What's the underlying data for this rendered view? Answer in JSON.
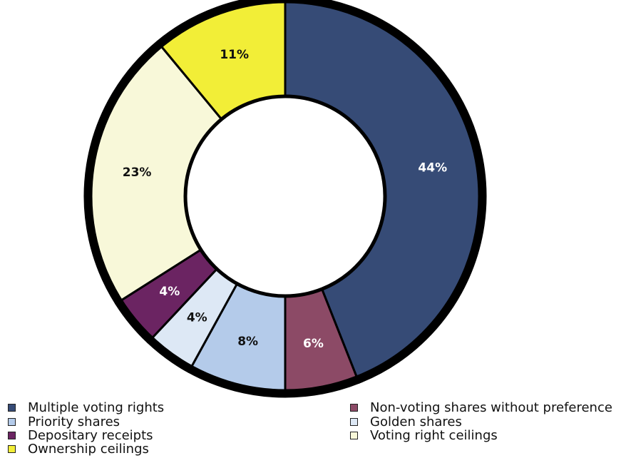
{
  "chart_data": {
    "type": "pie",
    "variant": "donut",
    "start_direction": "top, clockwise",
    "slices": [
      {
        "label": "Multiple voting rights",
        "value": 44,
        "data_label": "44%",
        "color": "#364b76",
        "label_color": "#ffffff"
      },
      {
        "label": "Non-voting shares without preference",
        "value": 6,
        "data_label": "6%",
        "color": "#8c4a66",
        "label_color": "#ffffff"
      },
      {
        "label": "Priority shares",
        "value": 8,
        "data_label": "8%",
        "color": "#b4cbea",
        "label_color": "#111111"
      },
      {
        "label": "Golden shares",
        "value": 4,
        "data_label": "4%",
        "color": "#dde8f5",
        "label_color": "#111111"
      },
      {
        "label": "Depositary receipts",
        "value": 4,
        "data_label": "4%",
        "color": "#6b2462",
        "label_color": "#ffffff"
      },
      {
        "label": "Voting right ceilings",
        "value": 23,
        "data_label": "23%",
        "color": "#f8f8d9",
        "label_color": "#111111"
      },
      {
        "label": "Ownership ceilings",
        "value": 11,
        "data_label": "11%",
        "color": "#f2ee37",
        "label_color": "#111111"
      }
    ],
    "legend": {
      "placement": "bottom, two columns",
      "left_column": [
        "Multiple voting rights",
        "Priority shares",
        "Depositary receipts",
        "Ownership ceilings"
      ],
      "right_column": [
        "Non-voting shares without preference",
        "Golden shares",
        "Voting right ceilings"
      ]
    }
  }
}
